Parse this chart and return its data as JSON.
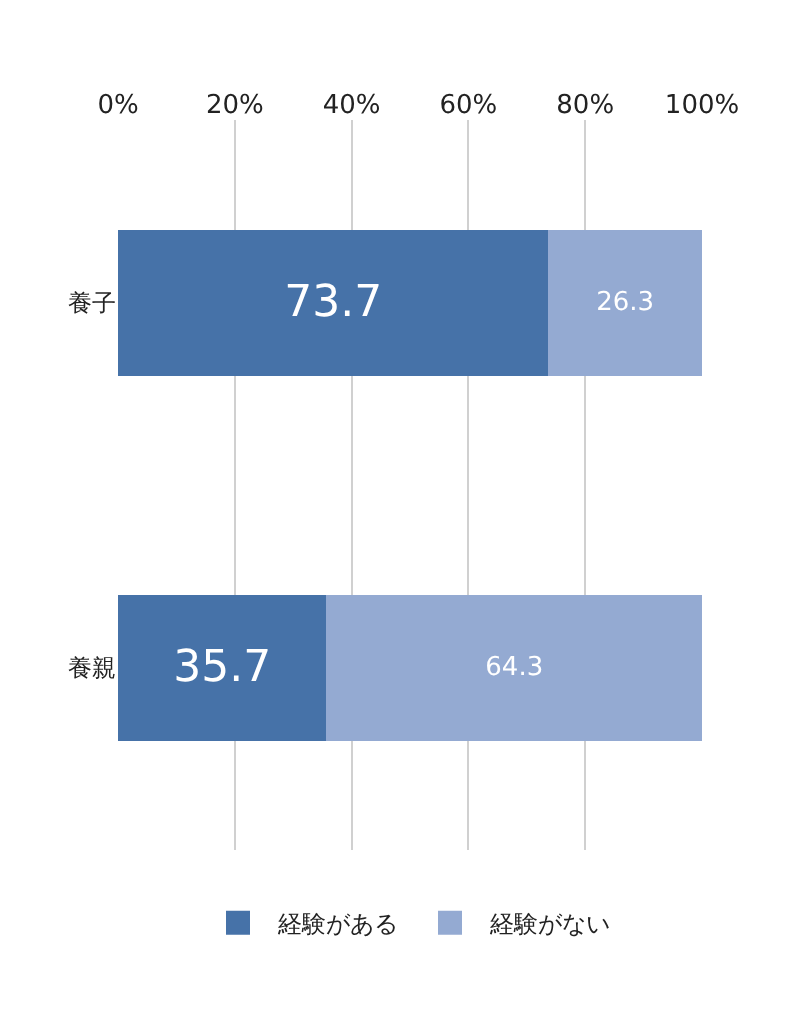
{
  "chart_data": {
    "type": "bar",
    "orientation": "horizontal",
    "stacked": true,
    "categories": [
      "養子",
      "養親"
    ],
    "series": [
      {
        "name": "経験がある",
        "color": "#4672a8",
        "values": [
          73.7,
          35.7
        ]
      },
      {
        "name": "経験がない",
        "color": "#94aad2",
        "values": [
          26.3,
          64.3
        ]
      }
    ],
    "xlim": [
      0,
      100
    ],
    "xticks": [
      {
        "value": 0,
        "label": "0%"
      },
      {
        "value": 20,
        "label": "20%"
      },
      {
        "value": 40,
        "label": "40%"
      },
      {
        "value": 60,
        "label": "60%"
      },
      {
        "value": 80,
        "label": "80%"
      },
      {
        "value": 100,
        "label": "100%"
      }
    ],
    "grid": "x",
    "legend": "bottom",
    "data_labels": true
  }
}
